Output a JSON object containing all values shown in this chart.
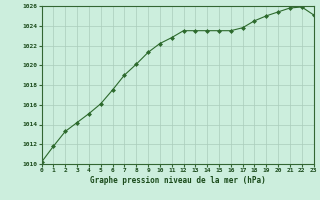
{
  "x": [
    0,
    1,
    2,
    3,
    4,
    5,
    6,
    7,
    8,
    9,
    10,
    11,
    12,
    13,
    14,
    15,
    16,
    17,
    18,
    19,
    20,
    21,
    22,
    23
  ],
  "y": [
    1010.2,
    1011.8,
    1013.3,
    1014.2,
    1015.1,
    1016.1,
    1017.5,
    1019.0,
    1020.1,
    1021.3,
    1022.2,
    1022.8,
    1023.5,
    1023.5,
    1023.5,
    1023.5,
    1023.5,
    1023.8,
    1024.5,
    1025.0,
    1025.4,
    1025.8,
    1025.9,
    1025.1
  ],
  "ylim": [
    1010,
    1026
  ],
  "xlim": [
    0,
    23
  ],
  "yticks": [
    1010,
    1012,
    1014,
    1016,
    1018,
    1020,
    1022,
    1024,
    1026
  ],
  "xticks": [
    0,
    1,
    2,
    3,
    4,
    5,
    6,
    7,
    8,
    9,
    10,
    11,
    12,
    13,
    14,
    15,
    16,
    17,
    18,
    19,
    20,
    21,
    22,
    23
  ],
  "xlabel": "Graphe pression niveau de la mer (hPa)",
  "line_color": "#2d6a2d",
  "marker": "D",
  "marker_size": 2.0,
  "bg_color": "#cceedd",
  "grid_color": "#aaccbb",
  "axis_label_color": "#1a4a1a",
  "tick_label_color": "#1a4a1a"
}
